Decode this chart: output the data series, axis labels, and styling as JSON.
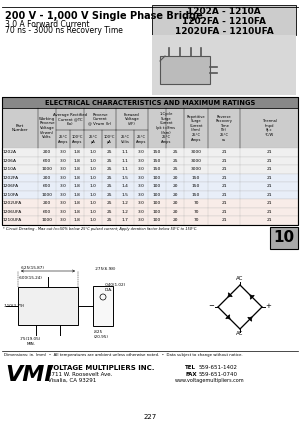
{
  "title_left": "200 V - 1,000 V Single Phase Bridge",
  "subtitle1": "3.0 A Forward Current",
  "subtitle2": "70 ns - 3000 ns Recovery Time",
  "part_numbers": [
    "1202A - 1210A",
    "1202FA - 1210FA",
    "1202UFA - 1210UFA"
  ],
  "table_title": "ELECTRICAL CHARACTERISTICS AND MAXIMUM RATINGS",
  "footnote": "* Circuit Derating - Max out Io=50% below 25°C pulsed current; Apply deration factor below 50°C to 150°C.",
  "dim_note": "Dimensions: in. (mm)  •  All temperatures are ambient unless otherwise noted.  •  Data subject to change without notice.",
  "company": "VOLTAGE MULTIPLIERS INC.",
  "address": "8711 W. Roosevelt Ave.",
  "city": "Visalia, CA 93291",
  "tel_label": "TEL",
  "tel_val": "559-651-1402",
  "fax_label": "FAX",
  "fax_val": "559-651-0740",
  "web": "www.voltagemultipliers.com",
  "page": "10",
  "page_num": "227",
  "bg_color": "#ffffff",
  "row_data": [
    [
      "1202A",
      "200",
      "3.0",
      "1.8",
      "1.0",
      "25",
      "1.1",
      "3.0",
      "150",
      "25",
      "3000",
      "21"
    ],
    [
      "1206A",
      "600",
      "3.0",
      "1.8",
      "1.0",
      "25",
      "1.1",
      "3.0",
      "150",
      "25",
      "3000",
      "21"
    ],
    [
      "1210A",
      "1000",
      "3.0",
      "1.8",
      "1.0",
      "25",
      "1.1",
      "3.0",
      "150",
      "25",
      "3000",
      "21"
    ],
    [
      "1202FA",
      "200",
      "3.0",
      "1.8",
      "1.0",
      "25",
      "1.5",
      "3.0",
      "100",
      "20",
      "150",
      "21"
    ],
    [
      "1206FA",
      "600",
      "3.0",
      "1.8",
      "1.0",
      "25",
      "1.4",
      "3.0",
      "100",
      "20",
      "150",
      "21"
    ],
    [
      "1210FA",
      "1000",
      "3.0",
      "1.8",
      "1.0",
      "25",
      "1.5",
      "3.0",
      "100",
      "20",
      "150",
      "21"
    ],
    [
      "1202UFA",
      "200",
      "3.0",
      "1.8",
      "1.0",
      "25",
      "1.2",
      "3.0",
      "100",
      "20",
      "70",
      "21"
    ],
    [
      "1206UFA",
      "600",
      "3.0",
      "1.8",
      "1.0",
      "25",
      "1.2",
      "3.0",
      "100",
      "20",
      "70",
      "21"
    ],
    [
      "1210UFA",
      "1000",
      "3.0",
      "1.8",
      "1.0",
      "25",
      "1.7",
      "3.0",
      "100",
      "20",
      "70",
      "21"
    ]
  ],
  "group_colors": [
    "#f0f0f0",
    "#f0f0f0",
    "#f0f0f0",
    "#e8eef8",
    "#e8eef8",
    "#e8eef8",
    "#f8ece8",
    "#f8ece8",
    "#f8ece8"
  ],
  "dim_625": ".625(15.87)",
  "dim_600": ".600(15.24)",
  "dim_275": ".275(6.98)",
  "dim_040": ".040(1.02)\nDIA.",
  "dim_110": ".110(2.79)",
  "dim_825": ".825\n(20.95)",
  "dim_75": ".75(19.05)\nMIN."
}
